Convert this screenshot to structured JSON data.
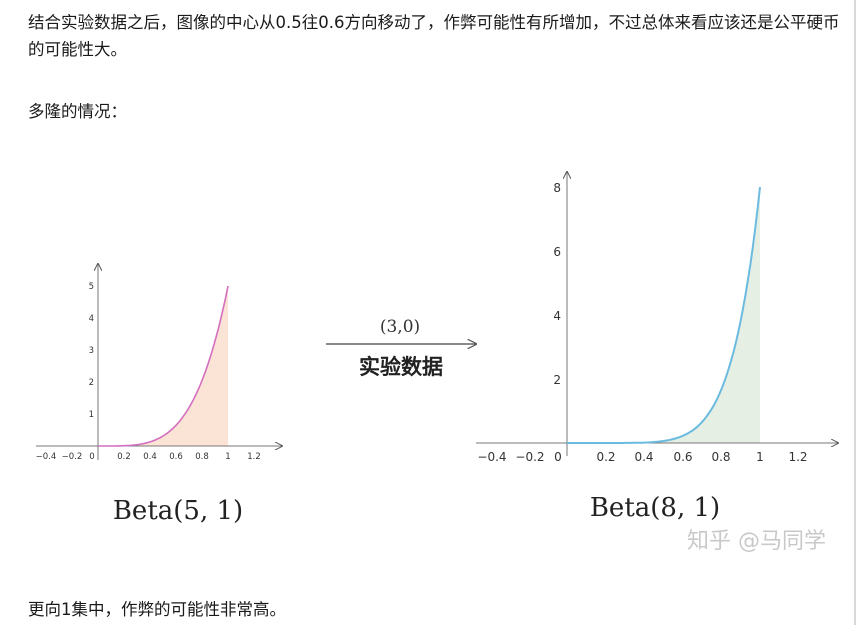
{
  "article": {
    "p1": "结合实验数据之后，图像的中心从0.5往0.6方向移动了，作弊可能性有所增加，不过总体来看应该还是公平硬币的可能性大。",
    "p2": "多隆的情况：",
    "p3": "更向1集中，作弊的可能性非常高。"
  },
  "figure": {
    "arrow_top_label": "(3,0)",
    "arrow_bottom_label": "实验数据",
    "watermark": "知乎 @马同学",
    "left_chart": {
      "label": "Beta(5, 1)",
      "x_ticks": [
        "−0.4",
        "−0.2",
        "0",
        "0.2",
        "0.4",
        "0.6",
        "0.8",
        "1",
        "1.2"
      ],
      "y_ticks": [
        "1",
        "2",
        "3",
        "4",
        "5"
      ],
      "curve_color": "#d46fbf",
      "fill_color": "#fbe3d6"
    },
    "right_chart": {
      "label": "Beta(8, 1)",
      "x_ticks": [
        "−0.4",
        "−0.2",
        "0",
        "0.2",
        "0.4",
        "0.6",
        "0.8",
        "1",
        "1.2"
      ],
      "y_ticks": [
        "2",
        "4",
        "6",
        "8"
      ],
      "curve_color": "#6bbbe0",
      "fill_color": "#e5efe4"
    }
  }
}
